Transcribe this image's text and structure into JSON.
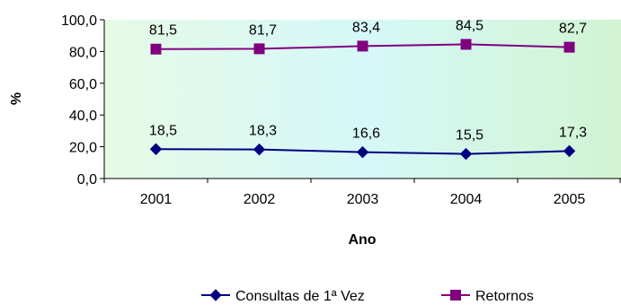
{
  "chart_data": {
    "type": "line",
    "title": "",
    "xlabel": "Ano",
    "ylabel": "%",
    "categories": [
      "2001",
      "2002",
      "2003",
      "2004",
      "2005"
    ],
    "ylim": [
      0,
      100
    ],
    "y_ticks": [
      "0,0",
      "20,0",
      "40,0",
      "60,0",
      "80,0",
      "100,0"
    ],
    "grid": false,
    "legend_position": "bottom",
    "background_gradient": [
      "#e6fae6",
      "#d6f8f8",
      "#d2f4d2"
    ],
    "series": [
      {
        "name": "Consultas de 1ª Vez",
        "values": [
          18.5,
          18.3,
          16.6,
          15.5,
          17.3
        ],
        "labels": [
          "18,5",
          "18,3",
          "16,6",
          "15,5",
          "17,3"
        ],
        "color": "#000080",
        "marker": "diamond"
      },
      {
        "name": "Retornos",
        "values": [
          81.5,
          81.7,
          83.4,
          84.5,
          82.7
        ],
        "labels": [
          "81,5",
          "81,7",
          "83,4",
          "84,5",
          "82,7"
        ],
        "color": "#800080",
        "marker": "square"
      }
    ]
  }
}
